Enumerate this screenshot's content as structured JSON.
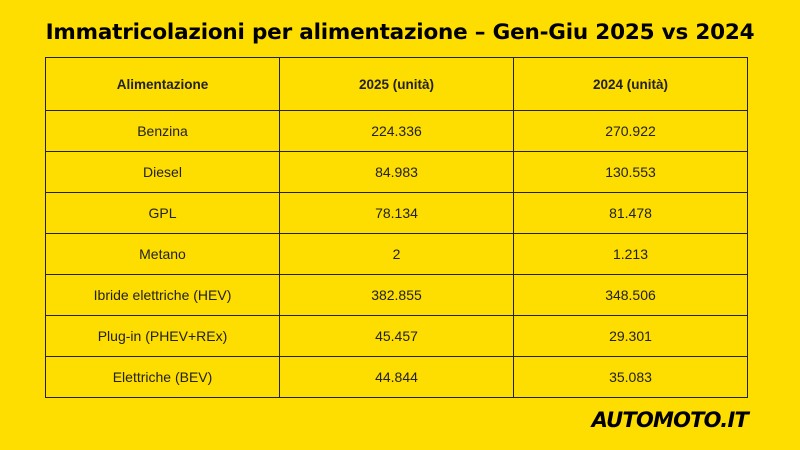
{
  "title": "Immatricolazioni per alimentazione – Gen-Giu 2025 vs 2024",
  "table": {
    "headers": [
      "Alimentazione",
      "2025 (unità)",
      "2024 (unità)"
    ],
    "rows": [
      [
        "Benzina",
        "224.336",
        "270.922"
      ],
      [
        "Diesel",
        "84.983",
        "130.553"
      ],
      [
        "GPL",
        "78.134",
        "81.478"
      ],
      [
        "Metano",
        "2",
        "1.213"
      ],
      [
        "Ibride elettriche (HEV)",
        "382.855",
        "348.506"
      ],
      [
        "Plug-in (PHEV+REx)",
        "45.457",
        "29.301"
      ],
      [
        "Elettriche (BEV)",
        "44.844",
        "35.083"
      ]
    ]
  },
  "logo": {
    "text": "AUTOMOTO.IT"
  },
  "colors": {
    "background": "#FEDD00",
    "border": "#222222",
    "text": "#111111"
  }
}
